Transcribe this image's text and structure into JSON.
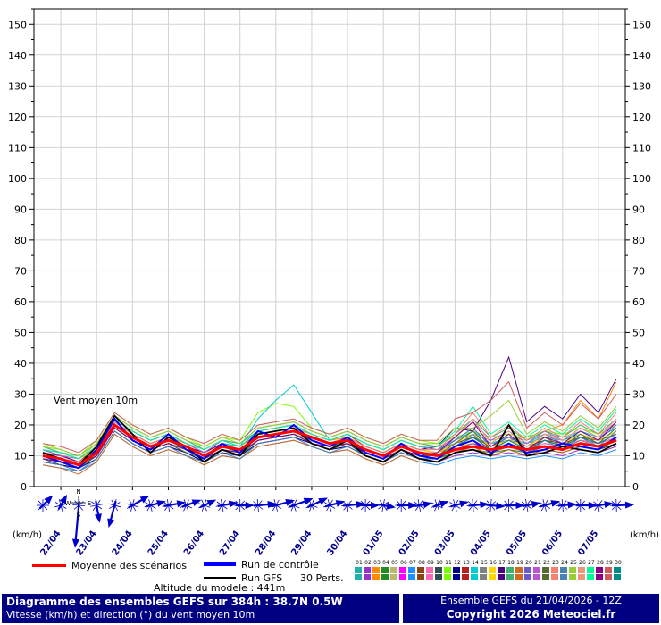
{
  "chart_data": {
    "type": "line",
    "title": "Diagramme des ensembles GEFS sur 384h : 38.7N 0.5W",
    "annotation": "Vent moyen 10m",
    "unit_label": "(km/h)",
    "ylim": [
      0,
      155
    ],
    "y_ticks": [
      0,
      10,
      20,
      30,
      40,
      50,
      60,
      70,
      80,
      90,
      100,
      110,
      120,
      130,
      140,
      150
    ],
    "x_hours": [
      0,
      12,
      24,
      36,
      48,
      60,
      72,
      84,
      96,
      108,
      120,
      132,
      144,
      156,
      168,
      180,
      192,
      204,
      216,
      228,
      240,
      252,
      264,
      276,
      288,
      300,
      312,
      324,
      336,
      348,
      360,
      372,
      384
    ],
    "x_tick_hours": [
      12,
      36,
      60,
      84,
      108,
      132,
      156,
      180,
      204,
      228,
      252,
      276,
      300,
      324,
      348,
      372
    ],
    "x_tick_labels": [
      "22/04",
      "23/04",
      "24/04",
      "25/04",
      "26/04",
      "27/04",
      "28/04",
      "29/04",
      "30/04",
      "01/05",
      "02/05",
      "03/05",
      "04/05",
      "05/05",
      "06/05",
      "07/05"
    ],
    "grid": true,
    "legend_position": "bottom",
    "compass": [
      "N",
      "E",
      "S",
      "W"
    ],
    "series": [
      {
        "name": "Moyenne des scénarios",
        "color": "#ff0000",
        "width": 3,
        "values": [
          10,
          9,
          7,
          11,
          20,
          16,
          13,
          15,
          13,
          10,
          13,
          12,
          16,
          17,
          18,
          16,
          14,
          15,
          12,
          10,
          13,
          11,
          10,
          12,
          13,
          12,
          13,
          12,
          13,
          12,
          14,
          13,
          15
        ]
      },
      {
        "name": "Run de contrôle",
        "color": "#0000ff",
        "width": 2,
        "values": [
          10,
          8,
          6,
          12,
          22,
          15,
          12,
          17,
          12,
          9,
          14,
          11,
          18,
          16,
          20,
          15,
          13,
          16,
          11,
          9,
          14,
          10,
          9,
          13,
          15,
          11,
          14,
          11,
          12,
          14,
          13,
          12,
          16
        ]
      },
      {
        "name": "Run GFS",
        "color": "#000000",
        "width": 1.8,
        "values": [
          11,
          9,
          7,
          13,
          23,
          17,
          11,
          16,
          13,
          8,
          12,
          10,
          17,
          18,
          19,
          14,
          12,
          15,
          10,
          8,
          12,
          9,
          8,
          11,
          12,
          10,
          20,
          10,
          11,
          13,
          12,
          11,
          14
        ]
      }
    ],
    "members": {
      "count": 30,
      "colors": [
        "#20b2aa",
        "#9932cc",
        "#ff8c00",
        "#228b22",
        "#bdb76b",
        "#ff00ff",
        "#1e90ff",
        "#8b4513",
        "#ff69b4",
        "#2f4f4f",
        "#7cfc00",
        "#00008b",
        "#b22222",
        "#00ced1",
        "#808080",
        "#ffd700",
        "#4b0082",
        "#3cb371",
        "#d2691e",
        "#6a5acd",
        "#ba55d3",
        "#556b2f",
        "#fa8072",
        "#4682b4",
        "#9acd32",
        "#e9967a",
        "#00fa9a",
        "#8b008b",
        "#cd5c5c",
        "#008b8b"
      ],
      "values": [
        [
          12,
          10,
          9,
          13,
          22,
          18,
          15,
          17,
          14,
          12,
          15,
          14,
          18,
          19,
          20,
          17,
          15,
          17,
          14,
          12,
          15,
          13,
          12,
          14,
          16,
          14,
          15,
          14,
          16,
          15,
          17,
          15,
          18
        ],
        [
          8,
          7,
          5,
          9,
          18,
          14,
          11,
          13,
          11,
          8,
          11,
          10,
          14,
          15,
          16,
          14,
          12,
          13,
          10,
          8,
          11,
          9,
          8,
          10,
          11,
          10,
          11,
          10,
          11,
          10,
          12,
          11,
          13
        ],
        [
          11,
          9,
          8,
          12,
          21,
          17,
          14,
          16,
          14,
          11,
          14,
          13,
          17,
          18,
          19,
          17,
          15,
          16,
          13,
          11,
          14,
          12,
          11,
          13,
          14,
          13,
          15,
          16,
          18,
          20,
          28,
          22,
          34
        ],
        [
          9,
          8,
          6,
          10,
          19,
          15,
          12,
          14,
          12,
          9,
          12,
          11,
          15,
          16,
          17,
          15,
          13,
          14,
          11,
          9,
          12,
          10,
          9,
          11,
          12,
          11,
          12,
          11,
          12,
          11,
          13,
          12,
          14
        ],
        [
          13,
          11,
          9,
          14,
          23,
          19,
          16,
          18,
          15,
          12,
          15,
          14,
          19,
          20,
          21,
          18,
          16,
          18,
          15,
          13,
          16,
          14,
          13,
          15,
          17,
          15,
          16,
          15,
          17,
          16,
          18,
          16,
          19
        ],
        [
          10,
          8,
          7,
          11,
          20,
          16,
          13,
          15,
          13,
          10,
          13,
          12,
          16,
          17,
          18,
          16,
          14,
          15,
          12,
          10,
          13,
          11,
          10,
          12,
          14,
          12,
          13,
          12,
          14,
          13,
          15,
          14,
          16
        ],
        [
          7,
          6,
          5,
          8,
          17,
          13,
          10,
          12,
          10,
          7,
          10,
          9,
          13,
          14,
          15,
          13,
          11,
          12,
          9,
          7,
          10,
          8,
          7,
          9,
          10,
          9,
          10,
          9,
          10,
          9,
          11,
          10,
          12
        ],
        [
          12,
          10,
          8,
          13,
          22,
          18,
          15,
          17,
          14,
          11,
          14,
          13,
          18,
          19,
          20,
          17,
          15,
          17,
          13,
          11,
          14,
          12,
          11,
          14,
          16,
          13,
          15,
          13,
          15,
          14,
          16,
          15,
          17
        ],
        [
          11,
          10,
          8,
          12,
          21,
          17,
          14,
          16,
          13,
          10,
          13,
          12,
          17,
          18,
          19,
          16,
          14,
          16,
          12,
          10,
          13,
          11,
          10,
          13,
          15,
          12,
          14,
          12,
          14,
          13,
          15,
          14,
          16
        ],
        [
          9,
          7,
          6,
          10,
          19,
          15,
          12,
          14,
          11,
          8,
          11,
          10,
          15,
          16,
          17,
          14,
          12,
          14,
          10,
          8,
          11,
          9,
          8,
          11,
          13,
          10,
          12,
          10,
          12,
          11,
          13,
          12,
          14
        ],
        [
          14,
          12,
          10,
          15,
          24,
          20,
          17,
          19,
          16,
          13,
          16,
          15,
          24,
          27,
          26,
          19,
          17,
          19,
          16,
          14,
          17,
          15,
          14,
          16,
          18,
          16,
          17,
          16,
          18,
          17,
          19,
          17,
          20
        ],
        [
          8,
          7,
          6,
          9,
          18,
          14,
          11,
          13,
          11,
          8,
          11,
          10,
          14,
          15,
          16,
          14,
          12,
          13,
          10,
          8,
          11,
          9,
          9,
          12,
          14,
          11,
          13,
          11,
          13,
          12,
          14,
          13,
          15
        ],
        [
          10,
          9,
          7,
          11,
          20,
          16,
          13,
          15,
          12,
          9,
          12,
          11,
          16,
          17,
          18,
          15,
          13,
          15,
          11,
          9,
          12,
          10,
          10,
          13,
          16,
          12,
          14,
          12,
          15,
          13,
          16,
          14,
          17
        ],
        [
          12,
          11,
          9,
          13,
          22,
          18,
          15,
          17,
          14,
          11,
          14,
          13,
          22,
          28,
          33,
          24,
          15,
          17,
          14,
          12,
          15,
          13,
          12,
          15,
          18,
          14,
          16,
          14,
          17,
          15,
          18,
          16,
          19
        ],
        [
          9,
          8,
          7,
          10,
          19,
          15,
          12,
          14,
          12,
          9,
          12,
          11,
          15,
          16,
          17,
          15,
          13,
          14,
          11,
          9,
          12,
          10,
          9,
          12,
          14,
          11,
          13,
          11,
          13,
          12,
          15,
          13,
          16
        ],
        [
          11,
          10,
          9,
          12,
          21,
          17,
          14,
          16,
          13,
          11,
          14,
          12,
          17,
          18,
          19,
          16,
          14,
          16,
          13,
          11,
          14,
          12,
          11,
          14,
          17,
          13,
          15,
          13,
          16,
          14,
          17,
          15,
          18
        ],
        [
          11,
          10,
          8,
          12,
          21,
          17,
          14,
          16,
          13,
          11,
          14,
          12,
          17,
          18,
          19,
          16,
          14,
          16,
          13,
          11,
          14,
          12,
          13,
          19,
          18,
          28,
          42,
          21,
          26,
          22,
          30,
          24,
          35
        ],
        [
          13,
          11,
          10,
          14,
          23,
          19,
          16,
          18,
          15,
          12,
          15,
          14,
          19,
          20,
          21,
          18,
          16,
          18,
          15,
          13,
          16,
          14,
          13,
          17,
          22,
          16,
          19,
          15,
          18,
          16,
          20,
          17,
          22
        ],
        [
          7,
          6,
          4,
          8,
          17,
          13,
          10,
          12,
          10,
          7,
          10,
          9,
          13,
          14,
          15,
          13,
          11,
          12,
          9,
          7,
          10,
          8,
          8,
          11,
          13,
          10,
          12,
          10,
          12,
          11,
          13,
          12,
          15
        ],
        [
          10,
          9,
          8,
          11,
          20,
          16,
          13,
          15,
          13,
          10,
          13,
          12,
          16,
          17,
          18,
          16,
          14,
          15,
          12,
          10,
          13,
          11,
          11,
          15,
          19,
          13,
          16,
          13,
          17,
          14,
          18,
          15,
          20
        ],
        [
          12,
          10,
          9,
          13,
          22,
          18,
          15,
          17,
          14,
          11,
          15,
          13,
          18,
          19,
          20,
          17,
          15,
          17,
          14,
          12,
          15,
          13,
          12,
          16,
          21,
          15,
          18,
          14,
          18,
          15,
          19,
          16,
          21
        ],
        [
          9,
          8,
          6,
          10,
          19,
          15,
          12,
          14,
          11,
          9,
          12,
          10,
          15,
          16,
          17,
          14,
          12,
          14,
          11,
          9,
          12,
          10,
          10,
          14,
          18,
          12,
          15,
          12,
          16,
          13,
          17,
          14,
          19
        ],
        [
          11,
          9,
          8,
          12,
          21,
          17,
          14,
          16,
          13,
          10,
          14,
          12,
          17,
          18,
          19,
          16,
          14,
          16,
          13,
          11,
          14,
          12,
          12,
          17,
          24,
          16,
          20,
          15,
          19,
          16,
          21,
          17,
          24
        ],
        [
          8,
          7,
          5,
          9,
          18,
          14,
          11,
          13,
          10,
          8,
          11,
          9,
          14,
          15,
          16,
          13,
          11,
          13,
          10,
          8,
          11,
          9,
          9,
          13,
          17,
          11,
          14,
          11,
          15,
          12,
          16,
          13,
          18
        ],
        [
          13,
          12,
          10,
          14,
          23,
          19,
          16,
          18,
          15,
          13,
          16,
          14,
          19,
          20,
          21,
          18,
          16,
          18,
          15,
          13,
          16,
          14,
          14,
          19,
          19,
          23,
          28,
          17,
          21,
          18,
          23,
          19,
          26
        ],
        [
          10,
          9,
          7,
          11,
          20,
          16,
          13,
          15,
          12,
          10,
          13,
          11,
          16,
          17,
          18,
          15,
          13,
          15,
          12,
          10,
          13,
          11,
          11,
          16,
          22,
          14,
          18,
          13,
          17,
          15,
          19,
          16,
          22
        ],
        [
          12,
          11,
          9,
          13,
          22,
          18,
          15,
          17,
          14,
          12,
          15,
          13,
          18,
          19,
          20,
          17,
          15,
          17,
          14,
          12,
          15,
          13,
          13,
          18,
          26,
          17,
          21,
          16,
          20,
          17,
          22,
          18,
          25
        ],
        [
          9,
          8,
          7,
          10,
          19,
          15,
          12,
          14,
          12,
          9,
          12,
          11,
          15,
          16,
          17,
          14,
          13,
          14,
          11,
          9,
          12,
          10,
          11,
          16,
          21,
          13,
          17,
          12,
          16,
          14,
          18,
          15,
          21
        ],
        [
          14,
          13,
          11,
          15,
          24,
          20,
          17,
          19,
          16,
          14,
          17,
          15,
          20,
          21,
          22,
          19,
          17,
          19,
          16,
          14,
          17,
          15,
          15,
          22,
          24,
          28,
          34,
          19,
          24,
          20,
          27,
          22,
          30
        ],
        [
          10,
          8,
          6,
          11,
          20,
          16,
          13,
          15,
          12,
          9,
          13,
          11,
          16,
          17,
          18,
          15,
          13,
          15,
          12,
          10,
          13,
          11,
          10,
          13,
          16,
          12,
          15,
          12,
          15,
          13,
          16,
          14,
          17
        ]
      ]
    },
    "wind_arrows": {
      "color": "#0000cd",
      "dirs_deg": [
        45,
        30,
        185,
        170,
        195,
        60,
        75,
        80,
        70,
        65,
        80,
        90,
        85,
        75,
        70,
        65,
        75,
        85,
        90,
        100,
        90,
        80,
        70,
        75,
        85,
        95,
        90,
        80,
        75,
        85,
        90,
        82,
        88
      ],
      "sizes": [
        16,
        14,
        48,
        20,
        26,
        22,
        18,
        20,
        18,
        15,
        18,
        16,
        21,
        22,
        23,
        20,
        18,
        20,
        16,
        14,
        18,
        15,
        14,
        16,
        18,
        16,
        18,
        16,
        18,
        16,
        19,
        17,
        20
      ]
    }
  },
  "legend": {
    "mean_label": "Moyenne des scénarios",
    "control_label": "Run de contrôle",
    "gfs_label": "Run GFS",
    "perts_label": "30 Perts.",
    "pert_numbers": [
      "01",
      "02",
      "03",
      "04",
      "05",
      "06",
      "07",
      "08",
      "09",
      "10",
      "11",
      "12",
      "13",
      "14",
      "15",
      "16",
      "17",
      "18",
      "19",
      "20",
      "21",
      "22",
      "23",
      "24",
      "25",
      "26",
      "27",
      "28",
      "29",
      "30"
    ],
    "altitude_label": "Altitude du modele : 441m"
  },
  "footer": {
    "title": "Diagramme des ensembles GEFS sur 384h : 38.7N 0.5W",
    "subtitle": "Vitesse (km/h) et direction (°) du vent moyen 10m",
    "run_info": "Ensemble GEFS du 21/04/2026 - 12Z",
    "copyright": "Copyright 2026 Meteociel.fr",
    "bar_color": "#000080"
  }
}
